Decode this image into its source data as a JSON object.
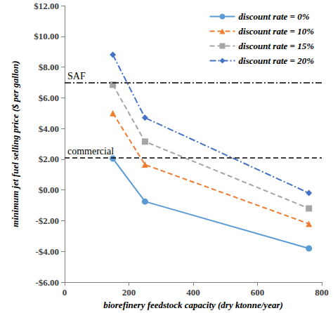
{
  "chart_data": {
    "type": "line",
    "x_label": "biorefinery feedstock capacity (dry ktonne/year)",
    "y_label": "minimum jet fuel selling price ($ per gallon)",
    "xlim": [
      0,
      800
    ],
    "xticks": [
      0,
      200,
      400,
      600,
      800
    ],
    "ylim": [
      -6,
      12
    ],
    "yticks": [
      {
        "value": -6,
        "label": "-$6.00"
      },
      {
        "value": -4,
        "label": "-$4.00"
      },
      {
        "value": -2,
        "label": "-$2.00"
      },
      {
        "value": 0,
        "label": "$0.00"
      },
      {
        "value": 2,
        "label": "$2.00"
      },
      {
        "value": 4,
        "label": "$4.00"
      },
      {
        "value": 6,
        "label": "$6.00"
      },
      {
        "value": 8,
        "label": "$8.00"
      },
      {
        "value": 10,
        "label": "$10.00"
      },
      {
        "value": 12,
        "label": "$12.00"
      }
    ],
    "grid": false,
    "legend": "top-right",
    "x": [
      150,
      250,
      760
    ],
    "series": [
      {
        "name": "discount rate = 0%",
        "color": "#5b9bd5",
        "marker": "circle",
        "line_style": "solid",
        "values": [
          2.05,
          -0.75,
          -3.8
        ]
      },
      {
        "name": "discount rate = 10%",
        "color": "#ed7d31",
        "marker": "triangle",
        "line_style": "dashed",
        "values": [
          5.0,
          1.65,
          -2.2
        ]
      },
      {
        "name": "discount rate = 15%",
        "color": "#a5a5a5",
        "marker": "square",
        "line_style": "dashed",
        "values": [
          6.85,
          3.15,
          -1.2
        ]
      },
      {
        "name": "discount rate = 20%",
        "color": "#4472c4",
        "marker": "diamond",
        "line_style": "dashdot",
        "values": [
          8.8,
          4.7,
          -0.2
        ]
      }
    ],
    "annotations": [
      {
        "text": "SAF",
        "y": 7.0,
        "line_style": "dashdot",
        "color": "#000000"
      },
      {
        "text": "commercial",
        "y": 2.1,
        "line_style": "dashed",
        "color": "#000000"
      }
    ]
  }
}
